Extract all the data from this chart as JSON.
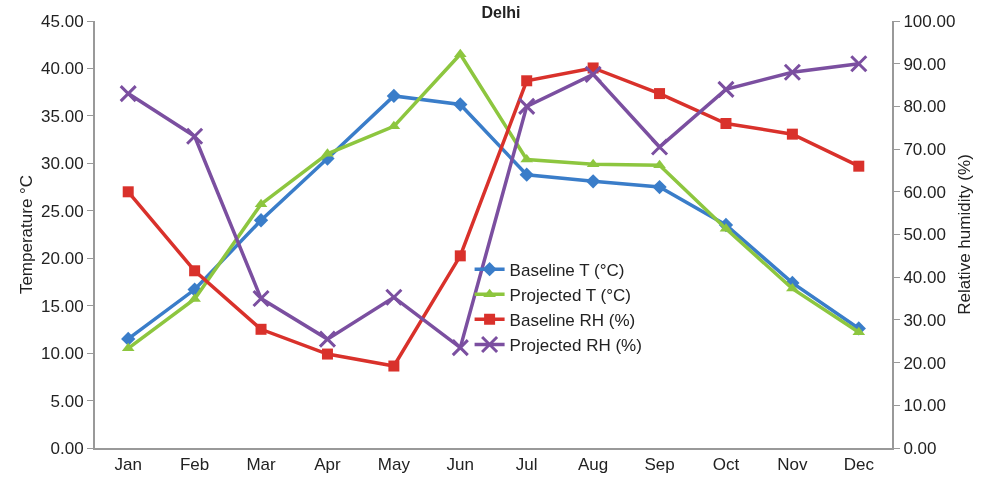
{
  "chart_data": {
    "type": "line",
    "title": "Delhi",
    "ylabel": "Temperature °C",
    "y2label": "Relative humidity (%)",
    "categories": [
      "Jan",
      "Feb",
      "Mar",
      "Apr",
      "May",
      "Jun",
      "Jul",
      "Aug",
      "Sep",
      "Oct",
      "Nov",
      "Dec"
    ],
    "series": [
      {
        "name": "Baseline T (°C)",
        "color": "#3a7dc9",
        "marker": "diamond",
        "values": [
          11.5,
          16.7,
          24.0,
          30.5,
          37.1,
          36.2,
          28.8,
          28.1,
          27.5,
          23.5,
          17.4,
          12.6
        ]
      },
      {
        "name": "Projected T (°C)",
        "color": "#8dc63f",
        "marker": "triangle",
        "values": [
          10.5,
          15.7,
          25.7,
          31.0,
          33.9,
          41.5,
          30.4,
          29.9,
          29.8,
          23.1,
          16.8,
          12.2
        ]
      },
      {
        "name": "Baseline RH (%)",
        "color": "#d9312b",
        "marker": "square",
        "axis": "y2",
        "values": [
          60.0,
          41.5,
          27.8,
          22.0,
          19.2,
          45.0,
          86.0,
          89.0,
          83.0,
          76.0,
          73.5,
          66.0
        ]
      },
      {
        "name": "Projected RH (%)",
        "color": "#7b4fa0",
        "marker": "cross",
        "axis": "y2",
        "values": [
          83.0,
          73.0,
          35.0,
          25.5,
          35.3,
          23.5,
          80.0,
          87.5,
          70.5,
          84.0,
          88.0,
          90.0
        ]
      }
    ],
    "ylim": [
      0,
      45
    ],
    "yticks": [
      {
        "value": 0,
        "label": "0.00"
      },
      {
        "value": 5,
        "label": "5.00"
      },
      {
        "value": 10,
        "label": "10.00"
      },
      {
        "value": 15,
        "label": "15.00"
      },
      {
        "value": 20,
        "label": "20.00"
      },
      {
        "value": 25,
        "label": "25.00"
      },
      {
        "value": 30,
        "label": "30.00"
      },
      {
        "value": 35,
        "label": "35.00"
      },
      {
        "value": 40,
        "label": "40.00"
      },
      {
        "value": 45,
        "label": "45.00"
      }
    ],
    "y2lim": [
      0,
      100
    ],
    "y2ticks": [
      {
        "value": 0,
        "label": "0.00"
      },
      {
        "value": 10,
        "label": "10.00"
      },
      {
        "value": 20,
        "label": "20.00"
      },
      {
        "value": 30,
        "label": "30.00"
      },
      {
        "value": 40,
        "label": "40.00"
      },
      {
        "value": 50,
        "label": "50.00"
      },
      {
        "value": 60,
        "label": "60.00"
      },
      {
        "value": 70,
        "label": "70.00"
      },
      {
        "value": 80,
        "label": "80.00"
      },
      {
        "value": 90,
        "label": "90.00"
      },
      {
        "value": 100,
        "label": "100.00"
      }
    ],
    "legend": "center",
    "line_style": "solid"
  }
}
